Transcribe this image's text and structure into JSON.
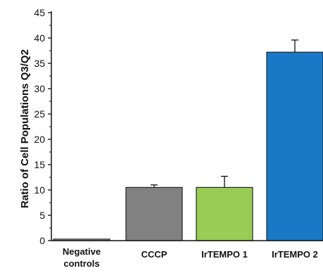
{
  "chart_data": {
    "type": "bar",
    "categories": [
      [
        "Negative",
        "controls"
      ],
      [
        "CCCP"
      ],
      [
        "IrTEMPO 1"
      ],
      [
        "IrTEMPO 2"
      ]
    ],
    "values": [
      0.3,
      10.5,
      10.5,
      37.2
    ],
    "errors": [
      0,
      0.5,
      2.2,
      2.4
    ],
    "bar_colors": [
      "#a8a8a8",
      "#818181",
      "#99cc55",
      "#1a79c6"
    ],
    "ylabel": "Ratio of Cell Populations Q3/Q2",
    "xlabel": "",
    "ylim": [
      0,
      45
    ],
    "yticks": [
      0,
      5,
      10,
      15,
      20,
      25,
      30,
      35,
      40,
      45
    ],
    "grid": false,
    "legend": "none"
  }
}
